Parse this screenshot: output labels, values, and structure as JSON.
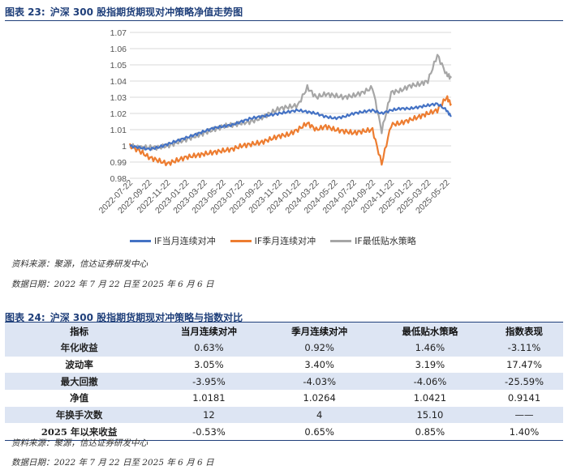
{
  "figure1": {
    "number": "图表 23:",
    "title": "沪深 300 股指期货期现对冲策略净值走势图",
    "source": "资料来源：聚源，信达证券研发中心",
    "date_range": "数据日期：2022 年 7 月 22 日至 2025 年 6 月 6 日"
  },
  "chart_data": {
    "type": "line",
    "title": "",
    "xlabel": "",
    "ylabel": "",
    "ylim": [
      0.98,
      1.07
    ],
    "yticks": [
      "0.98",
      "0.99",
      "1",
      "1.01",
      "1.02",
      "1.03",
      "1.04",
      "1.05",
      "1.06",
      "1.07"
    ],
    "x_tick_labels": [
      "2022-07-22",
      "2022-09-22",
      "2022-11-22",
      "2023-01-22",
      "2023-03-22",
      "2023-05-22",
      "2023-07-22",
      "2023-09-22",
      "2023-11-22",
      "2024-01-22",
      "2024-03-22",
      "2024-05-22",
      "2024-07-22",
      "2024-09-22",
      "2024-11-22",
      "2025-01-22",
      "2025-03-22",
      "2025-05-22"
    ],
    "grid": "horizontal",
    "legend_position": "bottom",
    "x": [
      "2022-07-22",
      "2022-08-22",
      "2022-09-22",
      "2022-10-22",
      "2022-11-22",
      "2022-12-22",
      "2023-01-22",
      "2023-02-22",
      "2023-03-22",
      "2023-04-22",
      "2023-05-22",
      "2023-06-22",
      "2023-07-22",
      "2023-08-22",
      "2023-09-22",
      "2023-10-22",
      "2023-11-22",
      "2023-12-22",
      "2024-01-22",
      "2024-02-22",
      "2024-03-22",
      "2024-04-22",
      "2024-05-22",
      "2024-06-22",
      "2024-07-22",
      "2024-08-22",
      "2024-09-22",
      "2024-10-22",
      "2024-11-22",
      "2024-12-22",
      "2025-01-22",
      "2025-02-22",
      "2025-03-22",
      "2025-04-22",
      "2025-05-22",
      "2025-06-06"
    ],
    "series": [
      {
        "name": "IF当月连续对冲",
        "color": "#4472c4",
        "values": [
          1.0,
          0.999,
          0.998,
          0.999,
          1.001,
          1.003,
          1.005,
          1.007,
          1.009,
          1.011,
          1.012,
          1.013,
          1.015,
          1.017,
          1.018,
          1.019,
          1.02,
          1.021,
          1.022,
          1.021,
          1.02,
          1.018,
          1.017,
          1.018,
          1.02,
          1.021,
          1.022,
          1.02,
          1.022,
          1.023,
          1.023,
          1.024,
          1.025,
          1.026,
          1.022,
          1.018
        ]
      },
      {
        "name": "IF季月连续对冲",
        "color": "#ed7d31",
        "values": [
          1.0,
          0.997,
          0.993,
          0.991,
          0.989,
          0.991,
          0.993,
          0.994,
          0.995,
          0.996,
          0.997,
          0.998,
          1.0,
          1.001,
          1.002,
          1.004,
          1.006,
          1.007,
          1.01,
          1.014,
          1.01,
          1.012,
          1.01,
          1.009,
          1.008,
          1.009,
          1.01,
          0.989,
          1.013,
          1.014,
          1.016,
          1.018,
          1.02,
          1.022,
          1.03,
          1.026
        ]
      },
      {
        "name": "IF最低贴水策略",
        "color": "#a6a6a6",
        "values": [
          1.0,
          0.999,
          0.999,
          0.999,
          1.0,
          1.002,
          1.004,
          1.006,
          1.008,
          1.01,
          1.012,
          1.013,
          1.014,
          1.015,
          1.017,
          1.02,
          1.023,
          1.024,
          1.025,
          1.036,
          1.03,
          1.032,
          1.031,
          1.03,
          1.031,
          1.033,
          1.036,
          1.009,
          1.033,
          1.034,
          1.037,
          1.038,
          1.04,
          1.056,
          1.044,
          1.042
        ]
      }
    ]
  },
  "figure2": {
    "number": "图表 24:",
    "title": "沪深 300 股指期货期现对冲策略与指数对比",
    "source": "资料来源：聚源，信达证券研发中心",
    "date_range": "数据日期：2022 年 7 月 22 日至 2025 年 6 月 6 日",
    "headers": [
      "指标",
      "当月连续对冲",
      "季月连续对冲",
      "最低贴水策略",
      "指数表现"
    ],
    "rows": [
      [
        "年化收益",
        "0.63%",
        "0.92%",
        "1.46%",
        "-3.11%"
      ],
      [
        "波动率",
        "3.05%",
        "3.40%",
        "3.19%",
        "17.47%"
      ],
      [
        "最大回撤",
        "-3.95%",
        "-4.03%",
        "-4.06%",
        "-25.59%"
      ],
      [
        "净值",
        "1.0181",
        "1.0264",
        "1.0421",
        "0.9141"
      ],
      [
        "年换手次数",
        "12",
        "4",
        "15.10",
        "——"
      ],
      [
        "2025 年以来收益",
        "-0.53%",
        "0.65%",
        "0.85%",
        "1.40%"
      ]
    ]
  }
}
